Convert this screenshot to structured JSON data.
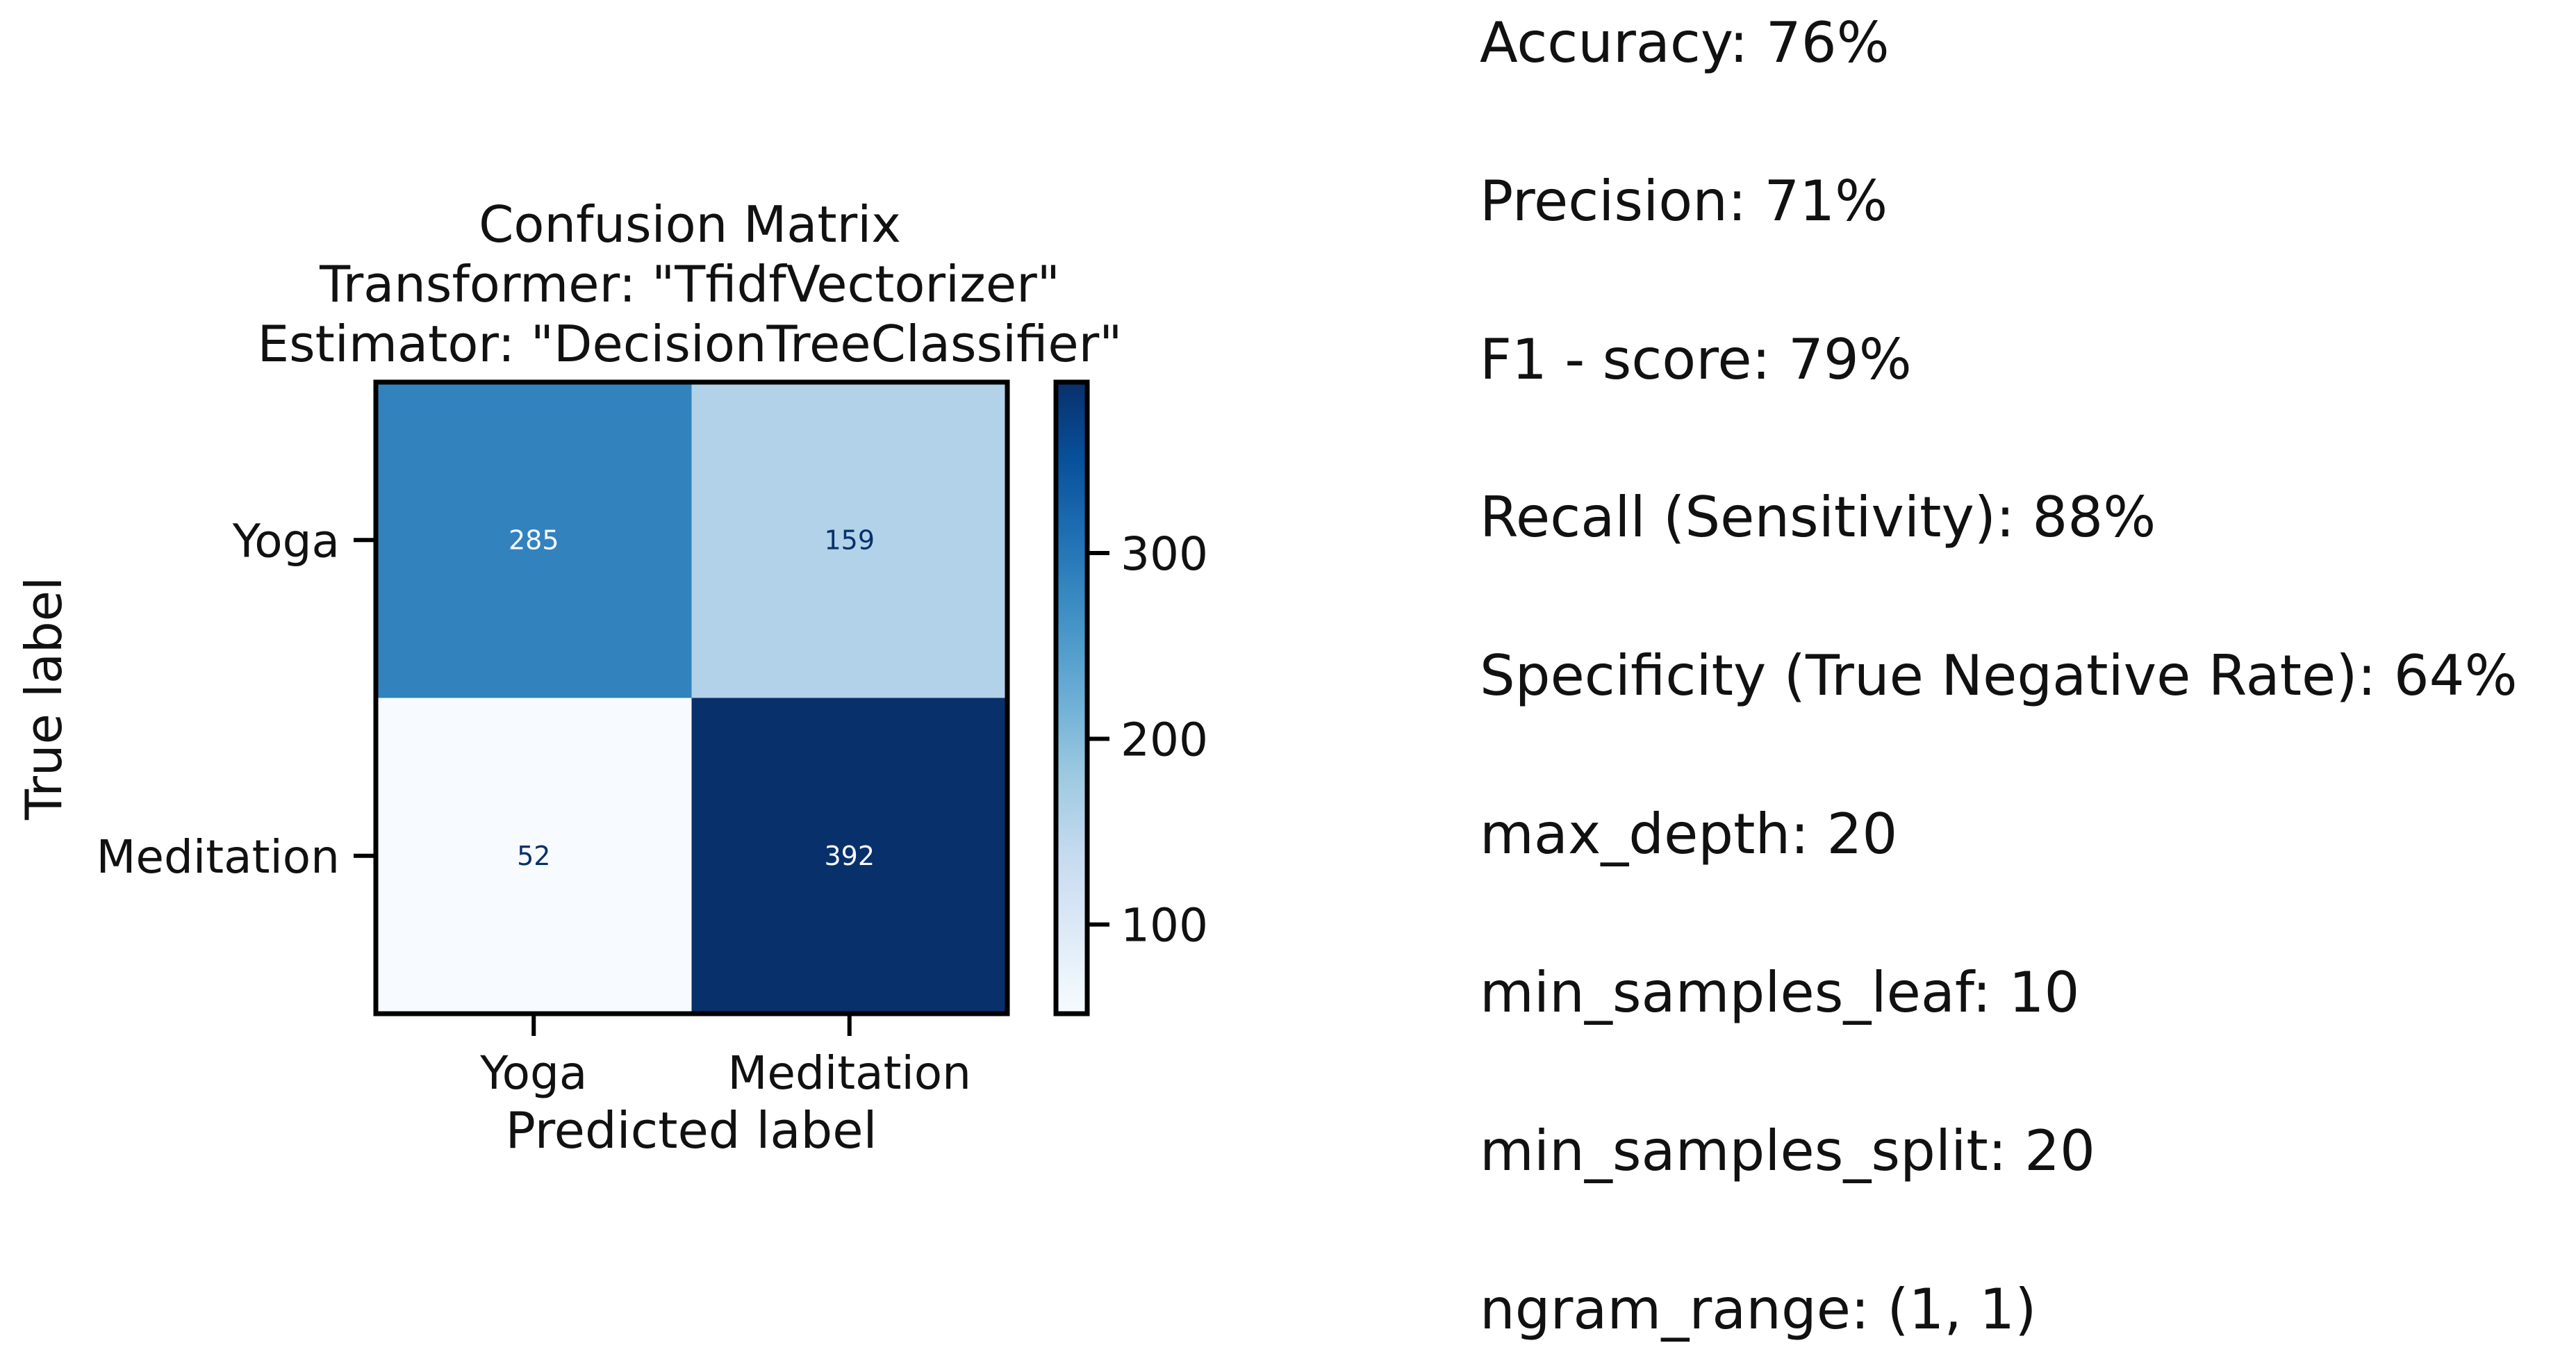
{
  "chart_data": {
    "type": "heatmap",
    "title_lines": [
      "Confusion Matrix",
      "Transformer: \"TfidfVectorizer\"",
      "Estimator: \"DecisionTreeClassifier\""
    ],
    "xlabel": "Predicted label",
    "ylabel": "True label",
    "x_categories": [
      "Yoga",
      "Meditation"
    ],
    "y_categories": [
      "Yoga",
      "Meditation"
    ],
    "matrix": [
      [
        285,
        159
      ],
      [
        52,
        392
      ]
    ],
    "colormap": "Blues",
    "colorbar": {
      "range": [
        52,
        392
      ],
      "ticks": [
        100,
        200,
        300
      ]
    },
    "grid": false
  },
  "metrics": [
    "Accuracy: 76%",
    "Precision: 71%",
    "F1 - score: 79%",
    "Recall (Sensitivity): 88%",
    "Specificity (True Negative Rate): 64%",
    "max_depth: 20",
    "min_samples_leaf: 10",
    "min_samples_split: 20",
    "ngram_range: (1, 1)"
  ]
}
